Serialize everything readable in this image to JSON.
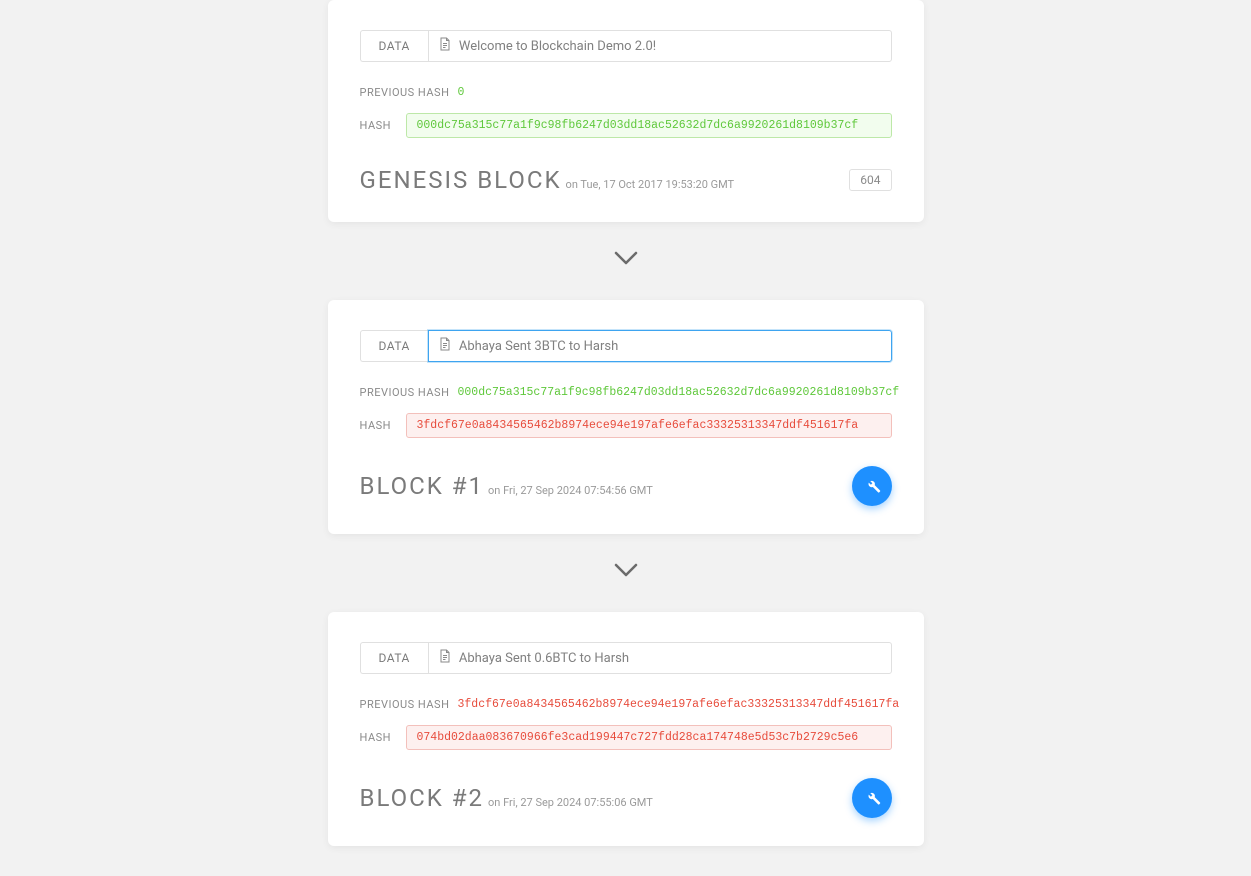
{
  "colors": {
    "page_bg": "#f2f2f2",
    "card_bg": "#ffffff",
    "text_muted": "#8a8a8a",
    "green": "#5fc83b",
    "green_bg": "#f2fdee",
    "green_border": "#bde8a8",
    "red": "#e74c3c",
    "red_bg": "#fdf0ef",
    "red_border": "#f3c0bb",
    "accent_blue": "#1e90ff",
    "input_focus": "#3ea4f0"
  },
  "labels": {
    "data": "DATA",
    "previous_hash": "PREVIOUS HASH",
    "hash": "HASH"
  },
  "blocks": [
    {
      "title": "GENESIS BLOCK",
      "timestamp_prefix": "on ",
      "timestamp": "Tue, 17 Oct 2017 19:53:20 GMT",
      "data": "Welcome to Blockchain Demo 2.0!",
      "data_focused": false,
      "previous_hash": "0",
      "previous_hash_valid": true,
      "hash": "000dc75a315c77a1f9c98fb6247d03dd18ac52632d7dc6a9920261d8109b37cf",
      "hash_valid": true,
      "nonce": "604",
      "show_mine": false
    },
    {
      "title": "BLOCK #1",
      "timestamp_prefix": "on ",
      "timestamp": "Fri, 27 Sep 2024 07:54:56 GMT",
      "data": "Abhaya Sent 3BTC to Harsh",
      "data_focused": true,
      "previous_hash": "000dc75a315c77a1f9c98fb6247d03dd18ac52632d7dc6a9920261d8109b37cf",
      "previous_hash_valid": true,
      "hash": "3fdcf67e0a8434565462b8974ece94e197afe6efac33325313347ddf451617fa",
      "hash_valid": false,
      "nonce": null,
      "show_mine": true
    },
    {
      "title": "BLOCK #2",
      "timestamp_prefix": "on ",
      "timestamp": "Fri, 27 Sep 2024 07:55:06 GMT",
      "data": "Abhaya Sent 0.6BTC to Harsh",
      "data_focused": false,
      "previous_hash": "3fdcf67e0a8434565462b8974ece94e197afe6efac33325313347ddf451617fa",
      "previous_hash_valid": false,
      "hash": "074bd02daa083670966fe3cad199447c727fdd28ca174748e5d53c7b2729c5e6",
      "hash_valid": false,
      "nonce": null,
      "show_mine": true
    }
  ]
}
